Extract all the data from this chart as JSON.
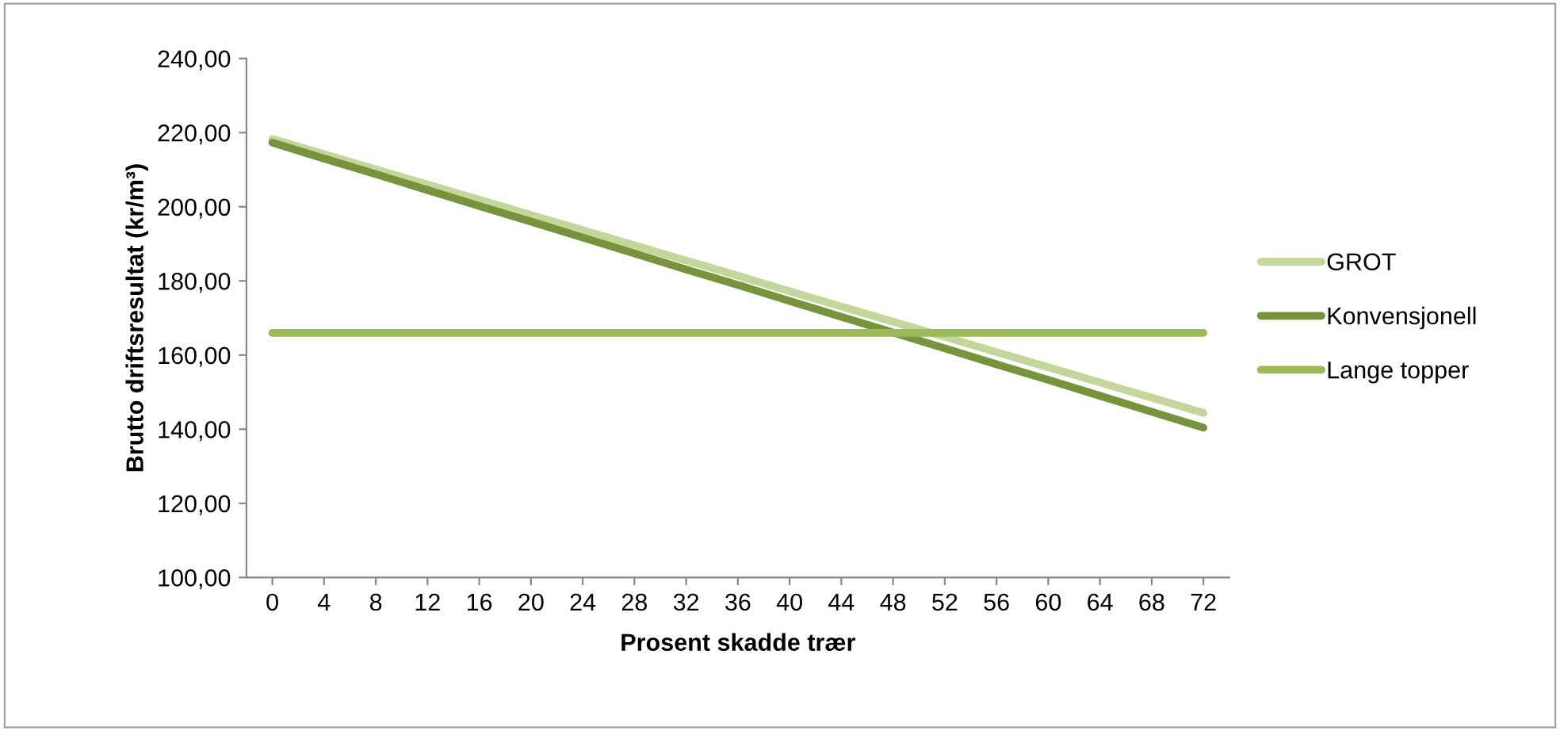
{
  "chart_data": {
    "type": "line",
    "xlabel": "Prosent skadde trær",
    "ylabel": "Brutto driftsresultat (kr/m³)",
    "categories": [
      "0",
      "4",
      "8",
      "12",
      "16",
      "20",
      "24",
      "28",
      "32",
      "36",
      "40",
      "44",
      "48",
      "52",
      "56",
      "60",
      "64",
      "68",
      "72"
    ],
    "series": [
      {
        "name": "GROT",
        "color": "#c3d69b",
        "values": [
          218.3,
          214.2,
          210.1,
          206.0,
          201.9,
          197.8,
          193.7,
          189.6,
          185.5,
          181.4,
          177.2,
          173.1,
          169.0,
          164.9,
          160.8,
          156.7,
          152.6,
          148.5,
          144.4
        ]
      },
      {
        "name": "Konvensjonell",
        "color": "#77933c",
        "values": [
          217.3,
          213.0,
          208.8,
          204.5,
          200.2,
          196.0,
          191.7,
          187.4,
          183.1,
          178.9,
          174.6,
          170.3,
          166.1,
          161.8,
          157.5,
          153.3,
          149.0,
          144.7,
          140.4
        ]
      },
      {
        "name": "Lange topper",
        "color": "#9bbb59",
        "values": [
          166,
          166,
          166,
          166,
          166,
          166,
          166,
          166,
          166,
          166,
          166,
          166,
          166,
          166,
          166,
          166,
          166,
          166,
          166
        ]
      }
    ],
    "ylim": [
      100,
      240
    ],
    "yticks": [
      {
        "value": 100,
        "label": "100,00"
      },
      {
        "value": 120,
        "label": "120,00"
      },
      {
        "value": 140,
        "label": "140,00"
      },
      {
        "value": 160,
        "label": "160,00"
      },
      {
        "value": 180,
        "label": "180,00"
      },
      {
        "value": 200,
        "label": "200,00"
      },
      {
        "value": 220,
        "label": "220,00"
      },
      {
        "value": 240,
        "label": "240,00"
      }
    ],
    "legend": "right",
    "marker": "none",
    "line_style": "solid",
    "grid": false
  }
}
